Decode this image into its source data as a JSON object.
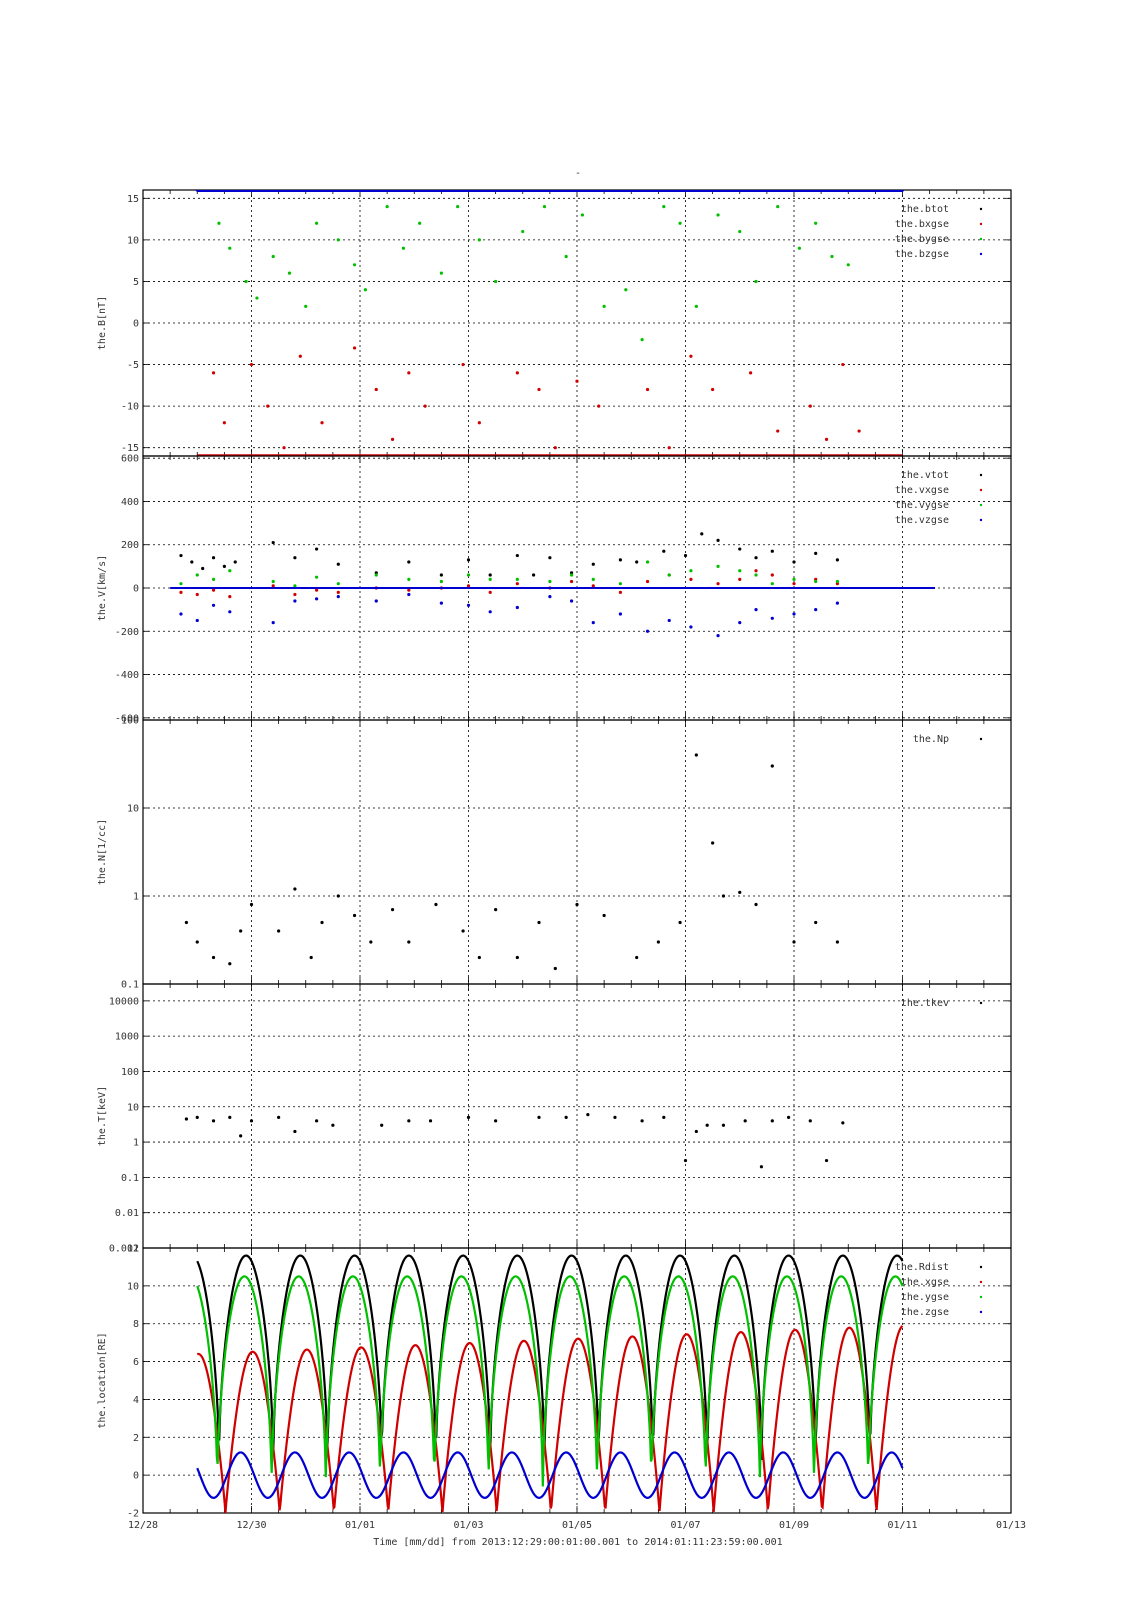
{
  "figure": {
    "top_title": "-",
    "xlabel": "Time [mm/dd]  from 2013:12:29:00:01:00.001  to  2014:01:11:23:59:00.001",
    "x_ticks": [
      "12/28",
      "12/30",
      "01/01",
      "01/03",
      "01/05",
      "01/07",
      "01/09",
      "01/11",
      "01/13"
    ]
  },
  "chart_data": [
    {
      "type": "scatter",
      "ylabel": "the.B[nT]",
      "ylim": [
        -16,
        16
      ],
      "yscale": "linear",
      "y_ticks": [
        "15",
        "10",
        "5",
        "0",
        "-5",
        "-10",
        "-15"
      ],
      "y_tick_values": [
        15,
        10,
        5,
        0,
        -5,
        -10,
        -15
      ],
      "grid": true,
      "legend_placement": "top-right",
      "series": [
        {
          "name": "the.btot",
          "color": "#000000",
          "x": [],
          "y": []
        },
        {
          "name": "the.bxgse",
          "color": "#d00000",
          "x": [
            1.3,
            1.5,
            1.7,
            2.0,
            2.3,
            2.6,
            2.9,
            3.3,
            3.6,
            3.9,
            4.3,
            4.6,
            4.9,
            5.2,
            5.5,
            5.9,
            6.2,
            6.6,
            6.9,
            7.3,
            7.6,
            8.0,
            8.4,
            8.8,
            9.3,
            9.7,
            10.1,
            10.5,
            10.8,
            11.2,
            11.7,
            12.0,
            12.3,
            12.6,
            12.9,
            13.2
          ],
          "y": [
            -6,
            -12,
            -16,
            -5,
            -10,
            -15,
            -4,
            -12,
            -16,
            -3,
            -8,
            -14,
            -6,
            -10,
            -16,
            -5,
            -12,
            -16,
            -6,
            -8,
            -15,
            -7,
            -10,
            -16,
            -8,
            -15,
            -4,
            -8,
            -16,
            -6,
            -13,
            -16,
            -10,
            -14,
            -5,
            -13
          ]
        },
        {
          "name": "the.bygse",
          "color": "#00c000",
          "x": [
            1.4,
            1.6,
            1.9,
            2.1,
            2.4,
            2.7,
            3.0,
            3.2,
            3.6,
            3.9,
            4.1,
            4.5,
            4.8,
            5.1,
            5.5,
            5.8,
            6.2,
            6.5,
            7.0,
            7.4,
            7.8,
            8.1,
            8.5,
            8.9,
            9.2,
            9.6,
            9.9,
            10.2,
            10.6,
            11.0,
            11.3,
            11.7,
            12.1,
            12.4,
            12.7,
            13.0
          ],
          "y": [
            12,
            9,
            5,
            3,
            8,
            6,
            2,
            12,
            10,
            7,
            4,
            14,
            9,
            12,
            6,
            14,
            10,
            5,
            11,
            14,
            8,
            13,
            2,
            4,
            -2,
            14,
            12,
            2,
            13,
            11,
            5,
            14,
            9,
            12,
            8,
            7
          ]
        },
        {
          "name": "the.bzgse",
          "color": "#0000d0",
          "x": [
            1.0,
            2.0,
            3.0,
            4.0,
            5.0,
            6.0,
            7.0,
            8.0,
            9.0,
            10.0,
            11.0,
            12.0,
            13.0,
            14.0
          ],
          "y": [
            16,
            16,
            16,
            16,
            16,
            16,
            16,
            16,
            16,
            16,
            16,
            16,
            16,
            16
          ]
        }
      ]
    },
    {
      "type": "scatter",
      "ylabel": "the.V[km/s]",
      "ylim": [
        -610,
        610
      ],
      "yscale": "linear",
      "y_ticks": [
        "600",
        "400",
        "200",
        "0",
        "-200",
        "-400",
        "-600"
      ],
      "y_tick_values": [
        600,
        400,
        200,
        0,
        -200,
        -400,
        -600
      ],
      "grid": true,
      "legend_placement": "top-right",
      "series": [
        {
          "name": "the.vtot",
          "color": "#000000",
          "x": [
            0.7,
            0.9,
            1.1,
            1.3,
            1.5,
            1.7,
            2.4,
            2.8,
            3.2,
            3.6,
            4.3,
            4.9,
            5.5,
            6.0,
            6.4,
            6.9,
            7.2,
            7.5,
            7.9,
            8.3,
            8.8,
            9.1,
            9.6,
            10.0,
            10.3,
            10.6,
            11.0,
            11.3,
            11.6,
            12.0,
            12.4,
            12.8
          ],
          "y": [
            150,
            120,
            90,
            140,
            100,
            120,
            210,
            140,
            180,
            110,
            70,
            120,
            60,
            130,
            60,
            150,
            60,
            140,
            70,
            110,
            130,
            120,
            170,
            150,
            250,
            220,
            180,
            140,
            170,
            120,
            160,
            130
          ]
        },
        {
          "name": "the.vxgse",
          "color": "#d00000",
          "x": [
            0.7,
            1.0,
            1.3,
            1.6,
            2.4,
            2.8,
            3.2,
            3.6,
            4.3,
            4.9,
            5.5,
            6.0,
            6.4,
            6.9,
            7.5,
            7.9,
            8.3,
            8.8,
            9.3,
            9.7,
            10.1,
            10.6,
            11.0,
            11.3,
            11.6,
            12.0,
            12.4,
            12.8
          ],
          "y": [
            -20,
            -30,
            -10,
            -40,
            10,
            -30,
            -10,
            -20,
            0,
            -10,
            0,
            10,
            -20,
            20,
            0,
            30,
            10,
            -20,
            30,
            60,
            40,
            20,
            40,
            80,
            60,
            20,
            40,
            20
          ]
        },
        {
          "name": "the.vygse",
          "color": "#00c000",
          "x": [
            0.7,
            1.0,
            1.3,
            1.6,
            2.4,
            2.8,
            3.2,
            3.6,
            4.3,
            4.9,
            5.5,
            6.0,
            6.4,
            6.9,
            7.5,
            7.9,
            8.3,
            8.8,
            9.3,
            9.7,
            10.1,
            10.6,
            11.0,
            11.3,
            11.6,
            12.0,
            12.4,
            12.8
          ],
          "y": [
            20,
            60,
            40,
            80,
            30,
            10,
            50,
            20,
            60,
            40,
            30,
            60,
            40,
            40,
            30,
            60,
            40,
            20,
            120,
            60,
            80,
            100,
            80,
            60,
            20,
            40,
            30,
            30
          ]
        },
        {
          "name": "the.vzgse",
          "color": "#0000d0",
          "x": [
            0.7,
            1.0,
            1.3,
            1.6,
            2.4,
            2.8,
            3.2,
            3.6,
            4.3,
            4.9,
            5.5,
            6.0,
            6.4,
            6.9,
            7.5,
            7.9,
            8.3,
            8.8,
            9.3,
            9.7,
            10.1,
            10.6,
            11.0,
            11.3,
            11.6,
            12.0,
            12.4,
            12.8
          ],
          "y": [
            -120,
            -150,
            -80,
            -110,
            -160,
            -60,
            -50,
            -40,
            -60,
            -30,
            -70,
            -80,
            -110,
            -90,
            -40,
            -60,
            -160,
            -120,
            -200,
            -150,
            -180,
            -220,
            -160,
            -100,
            -140,
            -120,
            -100,
            -70
          ]
        }
      ]
    },
    {
      "type": "scatter",
      "ylabel": "the.N[1/cc]",
      "ylim": [
        0.1,
        100
      ],
      "yscale": "log",
      "y_ticks": [
        "100",
        "10",
        "1",
        "0.1"
      ],
      "y_tick_values": [
        100,
        10,
        1,
        0.1
      ],
      "grid": true,
      "legend_placement": "top-right",
      "series": [
        {
          "name": "the.Np",
          "color": "#000000",
          "x": [
            0.8,
            1.0,
            1.3,
            1.6,
            1.8,
            2.0,
            2.5,
            2.8,
            3.1,
            3.3,
            3.6,
            3.9,
            4.2,
            4.6,
            4.9,
            5.4,
            5.9,
            6.2,
            6.5,
            6.9,
            7.3,
            7.6,
            8.0,
            8.5,
            9.1,
            9.5,
            9.9,
            10.2,
            10.5,
            10.7,
            11.0,
            11.3,
            11.6,
            12.0,
            12.4,
            12.8
          ],
          "y": [
            0.5,
            0.3,
            0.2,
            0.17,
            0.4,
            0.8,
            0.4,
            1.2,
            0.2,
            0.5,
            1.0,
            0.6,
            0.3,
            0.7,
            0.3,
            0.8,
            0.4,
            0.2,
            0.7,
            0.2,
            0.5,
            0.15,
            0.8,
            0.6,
            0.2,
            0.3,
            0.5,
            40,
            4,
            1.0,
            1.1,
            0.8,
            30,
            0.3,
            0.5,
            0.3
          ]
        }
      ]
    },
    {
      "type": "scatter",
      "ylabel": "the.T[keV]",
      "ylim": [
        0.001,
        30000
      ],
      "yscale": "log",
      "y_ticks": [
        "10000",
        "1000",
        "100",
        "10",
        "1",
        "0.1",
        "0.01",
        "0.001"
      ],
      "y_tick_values": [
        10000,
        1000,
        100,
        10,
        1,
        0.1,
        0.01,
        0.001
      ],
      "grid": true,
      "legend_placement": "top-right",
      "series": [
        {
          "name": "the.tkev",
          "color": "#000000",
          "x": [
            0.8,
            1.0,
            1.3,
            1.6,
            1.8,
            2.0,
            2.5,
            2.8,
            3.2,
            3.5,
            4.4,
            4.9,
            5.3,
            6.0,
            6.5,
            7.3,
            7.8,
            8.2,
            8.7,
            9.2,
            9.6,
            10.0,
            10.2,
            10.4,
            10.7,
            11.1,
            11.4,
            11.6,
            11.9,
            12.3,
            12.6,
            12.9
          ],
          "y": [
            4.5,
            5,
            4,
            5,
            1.5,
            4,
            5,
            2,
            4,
            3,
            3,
            4,
            4,
            5,
            4,
            5,
            5,
            6,
            5,
            4,
            5,
            0.3,
            2,
            3,
            3,
            4,
            0.2,
            4,
            5,
            4,
            0.3,
            3.5
          ]
        }
      ]
    },
    {
      "type": "line",
      "ylabel": "the.location[RE]",
      "ylim": [
        -2,
        12
      ],
      "yscale": "linear",
      "y_ticks": [
        "12",
        "10",
        "8",
        "6",
        "4",
        "2",
        "0",
        "-2"
      ],
      "y_tick_values": [
        12,
        10,
        8,
        6,
        4,
        2,
        0,
        -2
      ],
      "grid": true,
      "legend_placement": "top-right",
      "series": [
        {
          "name": "the.Rdist",
          "color": "#000000",
          "x": [],
          "y": []
        },
        {
          "name": "the.xgse",
          "color": "#d00000",
          "x": [],
          "y": []
        },
        {
          "name": "the.ygse",
          "color": "#00c000",
          "x": [],
          "y": []
        },
        {
          "name": "the.zgse",
          "color": "#0000d0",
          "x": [],
          "y": []
        }
      ],
      "orbit_model": {
        "x_start": 1.0,
        "x_end": 14.0,
        "period_days": 1.0,
        "apogee_phase_offset": 0.6,
        "Rdist_apogee": 11.6,
        "ygse_apogee": 10.5,
        "xgse_peak_first": 6.4,
        "xgse_peak_last": 7.9,
        "zgse_amplitude": 1.2
      }
    }
  ]
}
